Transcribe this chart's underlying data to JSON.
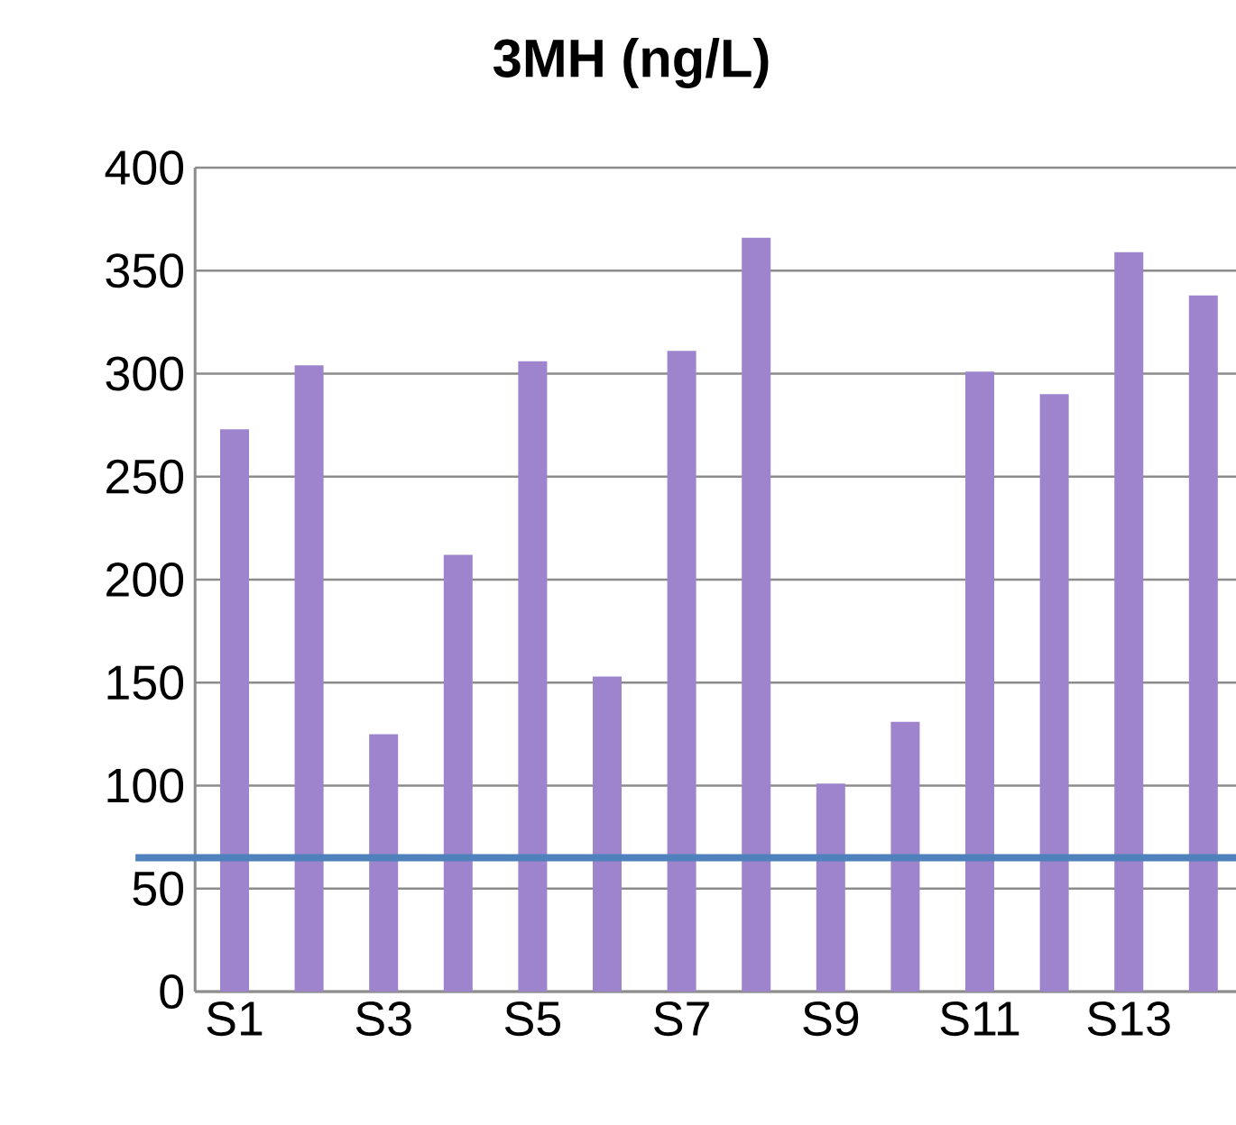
{
  "chart_data": {
    "type": "bar",
    "title": "3MH (ng/L)",
    "categories": [
      "S1",
      null,
      "S3",
      null,
      "S5",
      null,
      "S7",
      null,
      "S9",
      null,
      "S11",
      null,
      "S13",
      null
    ],
    "values": [
      273,
      304,
      125,
      212,
      306,
      153,
      311,
      366,
      101,
      131,
      301,
      290,
      359,
      338
    ],
    "color": "#9d84cc",
    "ylim": [
      0,
      400
    ],
    "yticks": [
      0,
      50,
      100,
      150,
      200,
      250,
      300,
      350,
      400
    ],
    "grid": "y",
    "ref_lines": [
      {
        "axis": "y",
        "value": 65,
        "color": "#4f81bd"
      }
    ]
  }
}
